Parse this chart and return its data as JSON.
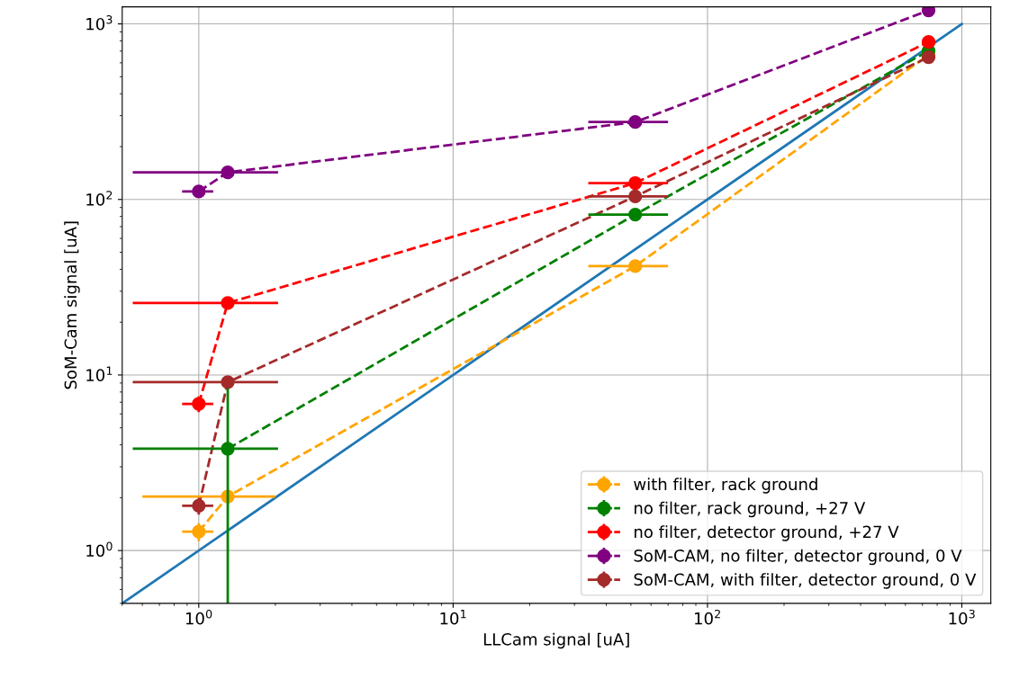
{
  "chart_data": {
    "type": "line",
    "xlabel": "LLCam signal [uA]",
    "ylabel": "SoM-Cam signal [uA]",
    "log": "xy",
    "grid": true,
    "legend": "bottom right",
    "marker": "circle",
    "line_style": "dashed",
    "xlim": [
      0.5,
      1300
    ],
    "ylim": [
      0.5,
      1250
    ],
    "xticks": [
      {
        "value": 1,
        "label": "10$^{0}$"
      },
      {
        "value": 10,
        "label": "10$^{1}$"
      },
      {
        "value": 100,
        "label": "10$^{2}$"
      },
      {
        "value": 1000,
        "label": "10$^{3}$"
      }
    ],
    "yticks": [
      {
        "value": 1,
        "label": "10$^{0}$"
      },
      {
        "value": 10,
        "label": "10$^{1}$"
      },
      {
        "value": 100,
        "label": "10$^{2}$"
      },
      {
        "value": 1000,
        "label": "10$^{3}$"
      }
    ],
    "x": [
      1.0,
      1.3,
      52,
      740
    ],
    "series": [
      {
        "name": "with filter, rack ground",
        "color": "#ffa500",
        "values": [
          1.28,
          2.03,
          41.7,
          667
        ],
        "errors": [
          0.15,
          null,
          null,
          null
        ],
        "xerrors": [
          0.14,
          0.7,
          18,
          null
        ]
      },
      {
        "name": "no filter, rack ground, +27 V",
        "color": "#008000",
        "values": [
          null,
          3.8,
          82,
          702
        ],
        "errors": [
          null,
          [
            0.5,
            8.4
          ],
          null,
          null
        ],
        "xerrors": [
          null,
          0.75,
          18,
          null
        ]
      },
      {
        "name": "no filter, detector ground, +27 V",
        "color": "#ff0000",
        "values": [
          6.85,
          25.7,
          124,
          789
        ],
        "errors": [
          0.7,
          null,
          null,
          null
        ],
        "xerrors": [
          0.14,
          0.75,
          18,
          null
        ]
      },
      {
        "name": "SoM-CAM, no filter, detector ground, 0 V",
        "color": "#800080",
        "values": [
          111,
          142.6,
          276,
          1194
        ],
        "errors": [
          null,
          null,
          null,
          null
        ],
        "xerrors": [
          0.14,
          0.75,
          18,
          null
        ]
      },
      {
        "name": "SoM-CAM, with filter, detector ground, 0 V",
        "color": "#a52a2a",
        "values": [
          1.8,
          9.1,
          104,
          646
        ],
        "errors": [
          0.2,
          null,
          null,
          null
        ],
        "xerrors": [
          0.14,
          0.75,
          18,
          null
        ]
      },
      {
        "type": "line",
        "color": "#1f77b4",
        "x": [
          0.5,
          1000
        ],
        "values": [
          0.5,
          1000
        ],
        "marker": "none",
        "line_style": "solid"
      }
    ]
  }
}
